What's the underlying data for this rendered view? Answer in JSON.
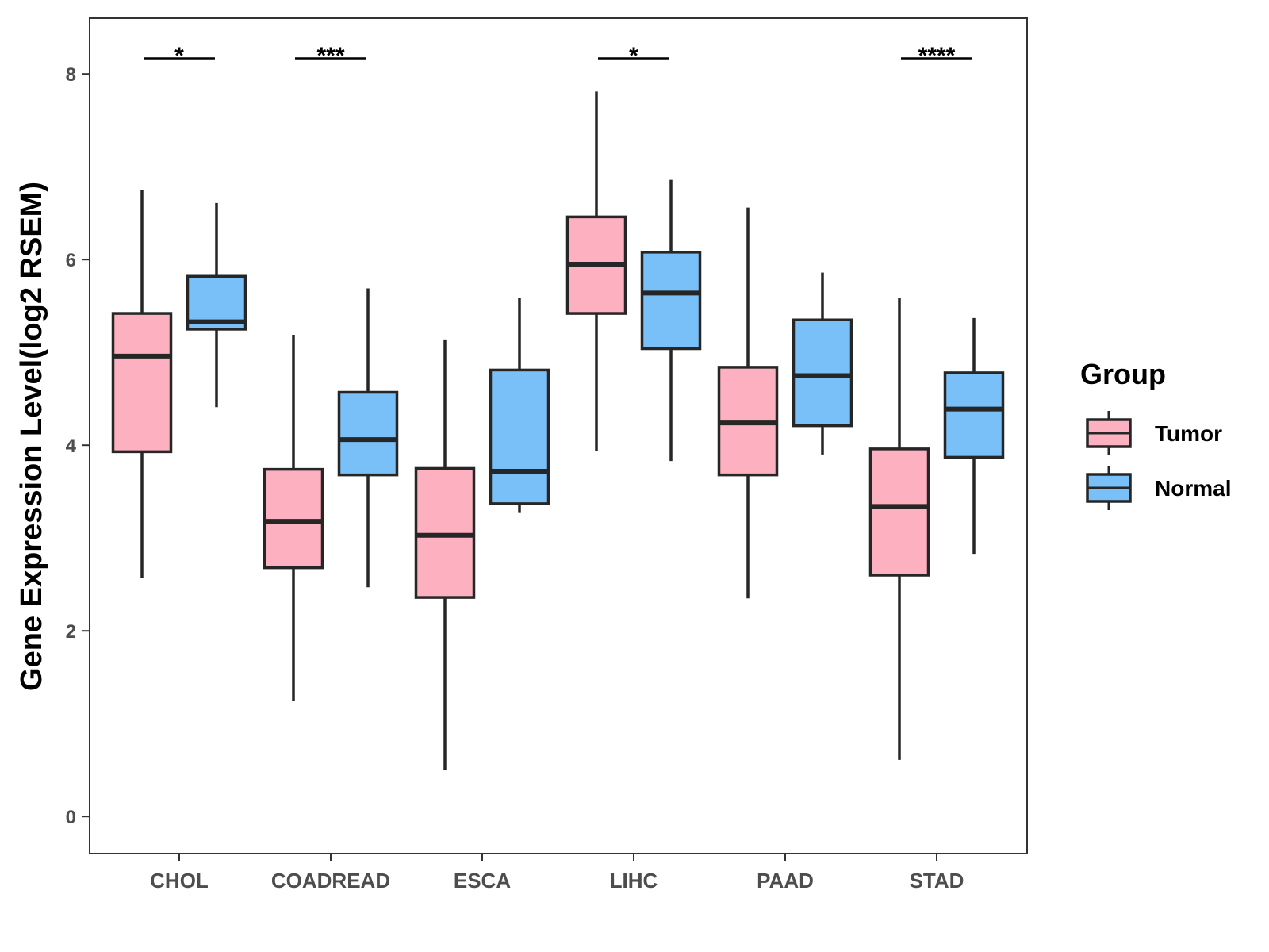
{
  "chart_data": {
    "type": "boxplot",
    "title": "",
    "xlabel": "",
    "ylabel": "Gene Expression Level(log2 RSEM)",
    "ylim": [
      -0.4,
      8.6
    ],
    "yticks": [
      0,
      2,
      4,
      6,
      8
    ],
    "grid": false,
    "categories": [
      "CHOL",
      "COADREAD",
      "ESCA",
      "LIHC",
      "PAAD",
      "STAD"
    ],
    "legend": {
      "title": "Group",
      "position": "right",
      "entries": [
        "Tumor",
        "Normal"
      ]
    },
    "series": [
      {
        "name": "Tumor",
        "color": "#FDB0C0",
        "boxes": [
          {
            "min": 2.57,
            "q1": 3.93,
            "median": 4.96,
            "q3": 5.42,
            "max": 6.75
          },
          {
            "min": 1.25,
            "q1": 2.68,
            "median": 3.18,
            "q3": 3.74,
            "max": 5.19
          },
          {
            "min": 0.5,
            "q1": 2.36,
            "median": 3.03,
            "q3": 3.75,
            "max": 5.14
          },
          {
            "min": 3.94,
            "q1": 5.42,
            "median": 5.95,
            "q3": 6.46,
            "max": 7.81
          },
          {
            "min": 2.35,
            "q1": 3.68,
            "median": 4.24,
            "q3": 4.84,
            "max": 6.56
          },
          {
            "min": 0.61,
            "q1": 2.6,
            "median": 3.34,
            "q3": 3.96,
            "max": 5.59
          }
        ]
      },
      {
        "name": "Normal",
        "color": "#78C0F7",
        "boxes": [
          {
            "min": 4.41,
            "q1": 5.25,
            "median": 5.33,
            "q3": 5.82,
            "max": 6.61
          },
          {
            "min": 2.47,
            "q1": 3.68,
            "median": 4.06,
            "q3": 4.57,
            "max": 5.69
          },
          {
            "min": 3.27,
            "q1": 3.37,
            "median": 3.72,
            "q3": 4.81,
            "max": 5.59
          },
          {
            "min": 3.83,
            "q1": 5.04,
            "median": 5.64,
            "q3": 6.08,
            "max": 6.86
          },
          {
            "min": 3.9,
            "q1": 4.21,
            "median": 4.75,
            "q3": 5.35,
            "max": 5.86
          },
          {
            "min": 2.83,
            "q1": 3.87,
            "median": 4.39,
            "q3": 4.78,
            "max": 5.37
          }
        ]
      }
    ],
    "significance": [
      {
        "category": "CHOL",
        "label": "*"
      },
      {
        "category": "COADREAD",
        "label": "***"
      },
      {
        "category": "LIHC",
        "label": "*"
      },
      {
        "category": "STAD",
        "label": "****"
      }
    ]
  }
}
